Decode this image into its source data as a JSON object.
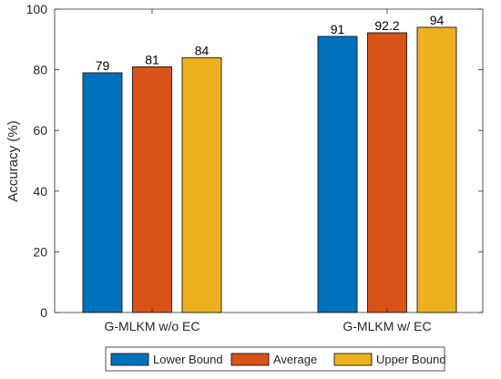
{
  "chart_data": {
    "type": "bar",
    "title": "",
    "xlabel": "",
    "ylabel": "Accuracy (%)",
    "ylim": [
      0,
      100
    ],
    "yticks": [
      0,
      20,
      40,
      60,
      80,
      100
    ],
    "grid": false,
    "legend_position": "bottom",
    "categories": [
      "G-MLKM w/o EC",
      "G-MLKM w/ EC"
    ],
    "series": [
      {
        "name": "Lower Bound",
        "color": "#0072BD",
        "values": [
          79,
          91
        ],
        "labels": [
          "79",
          "91"
        ]
      },
      {
        "name": "Average",
        "color": "#D95319",
        "values": [
          81,
          92.2
        ],
        "labels": [
          "81",
          "92.2"
        ]
      },
      {
        "name": "Upper Bound",
        "color": "#EDB120",
        "values": [
          84,
          94
        ],
        "labels": [
          "84",
          "94"
        ]
      }
    ]
  }
}
